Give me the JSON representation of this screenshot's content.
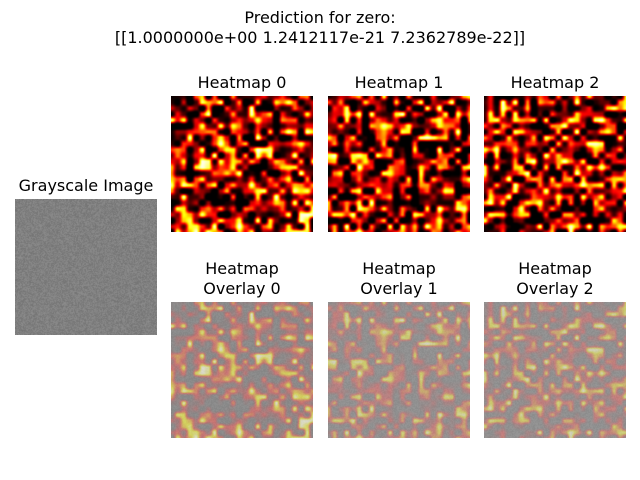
{
  "figure": {
    "title_line1": "Prediction for zero:",
    "title_line2": "[[1.0000000e+00 1.2412117e-21 7.2362789e-22]]"
  },
  "panels": {
    "grayscale": {
      "title": "Grayscale Image"
    },
    "heatmaps": [
      {
        "title": "Heatmap 0"
      },
      {
        "title": "Heatmap 1"
      },
      {
        "title": "Heatmap 2"
      }
    ],
    "overlays": [
      {
        "title_line1": "Heatmap",
        "title_line2": "Overlay 0"
      },
      {
        "title_line1": "Heatmap",
        "title_line2": "Overlay 1"
      },
      {
        "title_line1": "Heatmap",
        "title_line2": "Overlay 2"
      }
    ]
  },
  "colors": {
    "background": "#ffffff",
    "grayscale_base": "#808080",
    "colormap": "hot"
  }
}
